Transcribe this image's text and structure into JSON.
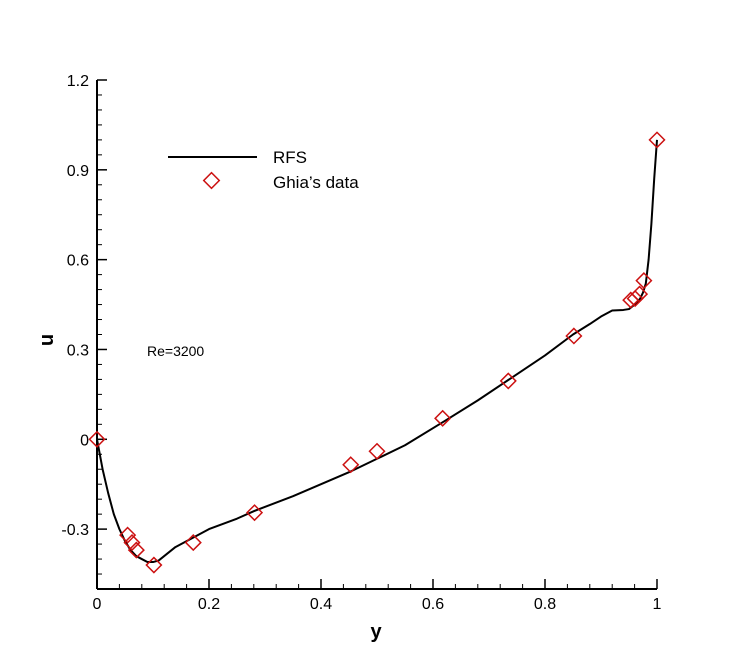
{
  "chart_data": {
    "type": "line",
    "xlabel": "y",
    "ylabel": "u",
    "xlim": [
      0,
      1
    ],
    "ylim": [
      -0.5,
      1.2
    ],
    "xticks": [
      0,
      0.2,
      0.4,
      0.6,
      0.8,
      1
    ],
    "xtick_labels": [
      "0",
      "0.2",
      "0.4",
      "0.6",
      "0.8",
      "1"
    ],
    "yticks": [
      -0.3,
      0,
      0.3,
      0.6,
      0.9,
      1.2
    ],
    "ytick_labels": [
      "-0.3",
      "0",
      "0.3",
      "0.6",
      "0.9",
      "1.2"
    ],
    "grid": false,
    "legend_position": "top-left",
    "annotation": "Re=3200",
    "series": [
      {
        "name": "RFS",
        "style": "line",
        "color": "#000000",
        "x": [
          0,
          0.01,
          0.02,
          0.03,
          0.04,
          0.05,
          0.06,
          0.07,
          0.08,
          0.09,
          0.1,
          0.11,
          0.12,
          0.14,
          0.17,
          0.2,
          0.25,
          0.28,
          0.35,
          0.45,
          0.5,
          0.55,
          0.62,
          0.68,
          0.74,
          0.8,
          0.85,
          0.88,
          0.9,
          0.92,
          0.94,
          0.95,
          0.96,
          0.965,
          0.97,
          0.975,
          0.98,
          0.985,
          0.99,
          0.995,
          1
        ],
        "y": [
          0,
          -0.1,
          -0.18,
          -0.25,
          -0.3,
          -0.34,
          -0.37,
          -0.39,
          -0.4,
          -0.41,
          -0.41,
          -0.405,
          -0.39,
          -0.36,
          -0.33,
          -0.3,
          -0.265,
          -0.24,
          -0.19,
          -0.11,
          -0.065,
          -0.02,
          0.06,
          0.13,
          0.205,
          0.28,
          0.35,
          0.385,
          0.41,
          0.43,
          0.432,
          0.435,
          0.45,
          0.46,
          0.47,
          0.49,
          0.52,
          0.6,
          0.72,
          0.87,
          1.0
        ]
      },
      {
        "name": "Ghia’s data",
        "style": "marker",
        "marker": "diamond",
        "color": "#cc1111",
        "x": [
          0,
          0.0547,
          0.0625,
          0.0703,
          0.1016,
          0.1719,
          0.2813,
          0.4531,
          0.5,
          0.6172,
          0.7344,
          0.8516,
          0.9531,
          0.9609,
          0.9688,
          0.9766,
          1
        ],
        "y": [
          0,
          -0.32,
          -0.345,
          -0.37,
          -0.42,
          -0.345,
          -0.245,
          -0.085,
          -0.04,
          0.07,
          0.195,
          0.345,
          0.465,
          0.47,
          0.485,
          0.53,
          1.0
        ]
      }
    ]
  }
}
